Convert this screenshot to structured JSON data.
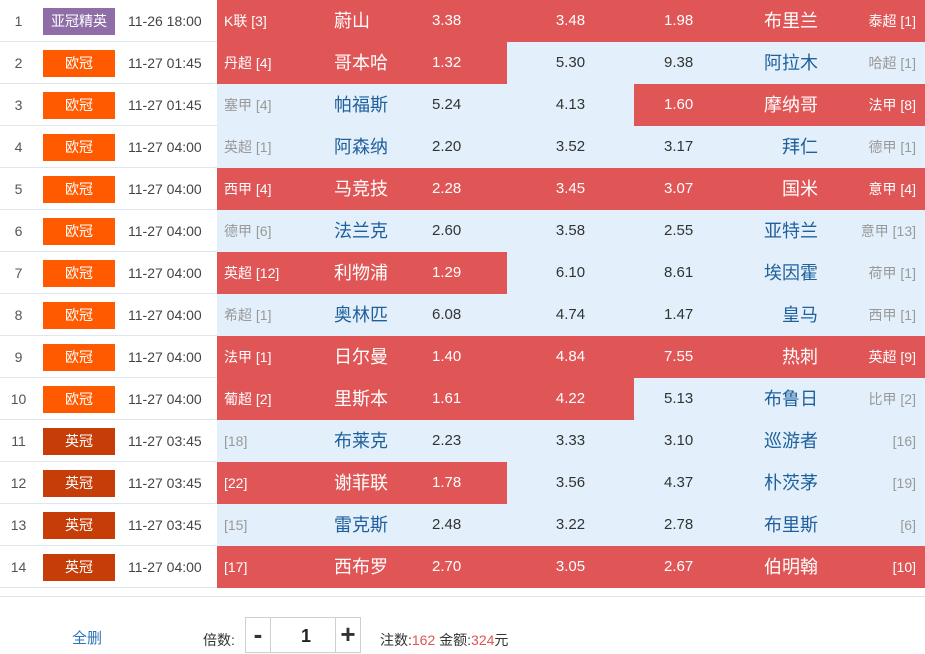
{
  "matches": [
    {
      "idx": "1",
      "league": "亚冠精英",
      "league_color": "purple",
      "time": "11-26 18:00",
      "home_rank": "K联 [3]",
      "home": "蔚山",
      "home_odd": "3.38",
      "draw_odd": "3.48",
      "away_odd": "1.98",
      "away": "布里兰",
      "away_rank": "泰超 [1]",
      "sel_home": true,
      "sel_draw": true,
      "sel_away": true
    },
    {
      "idx": "2",
      "league": "欧冠",
      "league_color": "orange",
      "time": "11-27 01:45",
      "home_rank": "丹超 [4]",
      "home": "哥本哈",
      "home_odd": "1.32",
      "draw_odd": "5.30",
      "away_odd": "9.38",
      "away": "阿拉木",
      "away_rank": "哈超 [1]",
      "sel_home": true,
      "sel_draw": false,
      "sel_away": false
    },
    {
      "idx": "3",
      "league": "欧冠",
      "league_color": "orange",
      "time": "11-27 01:45",
      "home_rank": "塞甲 [4]",
      "home": "帕福斯",
      "home_odd": "5.24",
      "draw_odd": "4.13",
      "away_odd": "1.60",
      "away": "摩纳哥",
      "away_rank": "法甲 [8]",
      "sel_home": false,
      "sel_draw": false,
      "sel_away": true
    },
    {
      "idx": "4",
      "league": "欧冠",
      "league_color": "orange",
      "time": "11-27 04:00",
      "home_rank": "英超 [1]",
      "home": "阿森纳",
      "home_odd": "2.20",
      "draw_odd": "3.52",
      "away_odd": "3.17",
      "away": "拜仁",
      "away_rank": "德甲 [1]",
      "sel_home": false,
      "sel_draw": false,
      "sel_away": false
    },
    {
      "idx": "5",
      "league": "欧冠",
      "league_color": "orange",
      "time": "11-27 04:00",
      "home_rank": "西甲 [4]",
      "home": "马竞技",
      "home_odd": "2.28",
      "draw_odd": "3.45",
      "away_odd": "3.07",
      "away": "国米",
      "away_rank": "意甲 [4]",
      "sel_home": true,
      "sel_draw": true,
      "sel_away": true
    },
    {
      "idx": "6",
      "league": "欧冠",
      "league_color": "orange",
      "time": "11-27 04:00",
      "home_rank": "德甲 [6]",
      "home": "法兰克",
      "home_odd": "2.60",
      "draw_odd": "3.58",
      "away_odd": "2.55",
      "away": "亚特兰",
      "away_rank": "意甲 [13]",
      "sel_home": false,
      "sel_draw": false,
      "sel_away": false
    },
    {
      "idx": "7",
      "league": "欧冠",
      "league_color": "orange",
      "time": "11-27 04:00",
      "home_rank": "英超 [12]",
      "home": "利物浦",
      "home_odd": "1.29",
      "draw_odd": "6.10",
      "away_odd": "8.61",
      "away": "埃因霍",
      "away_rank": "荷甲 [1]",
      "sel_home": true,
      "sel_draw": false,
      "sel_away": false
    },
    {
      "idx": "8",
      "league": "欧冠",
      "league_color": "orange",
      "time": "11-27 04:00",
      "home_rank": "希超 [1]",
      "home": "奥林匹",
      "home_odd": "6.08",
      "draw_odd": "4.74",
      "away_odd": "1.47",
      "away": "皇马",
      "away_rank": "西甲 [1]",
      "sel_home": false,
      "sel_draw": false,
      "sel_away": false
    },
    {
      "idx": "9",
      "league": "欧冠",
      "league_color": "orange",
      "time": "11-27 04:00",
      "home_rank": "法甲 [1]",
      "home": "日尔曼",
      "home_odd": "1.40",
      "draw_odd": "4.84",
      "away_odd": "7.55",
      "away": "热刺",
      "away_rank": "英超 [9]",
      "sel_home": true,
      "sel_draw": true,
      "sel_away": true
    },
    {
      "idx": "10",
      "league": "欧冠",
      "league_color": "orange",
      "time": "11-27 04:00",
      "home_rank": "葡超 [2]",
      "home": "里斯本",
      "home_odd": "1.61",
      "draw_odd": "4.22",
      "away_odd": "5.13",
      "away": "布鲁日",
      "away_rank": "比甲 [2]",
      "sel_home": true,
      "sel_draw": true,
      "sel_away": false
    },
    {
      "idx": "11",
      "league": "英冠",
      "league_color": "dark",
      "time": "11-27 03:45",
      "home_rank": "[18]",
      "home": "布莱克",
      "home_odd": "2.23",
      "draw_odd": "3.33",
      "away_odd": "3.10",
      "away": "巡游者",
      "away_rank": "[16]",
      "sel_home": false,
      "sel_draw": false,
      "sel_away": false
    },
    {
      "idx": "12",
      "league": "英冠",
      "league_color": "dark",
      "time": "11-27 03:45",
      "home_rank": "[22]",
      "home": "谢菲联",
      "home_odd": "1.78",
      "draw_odd": "3.56",
      "away_odd": "4.37",
      "away": "朴茨茅",
      "away_rank": "[19]",
      "sel_home": true,
      "sel_draw": false,
      "sel_away": false
    },
    {
      "idx": "13",
      "league": "英冠",
      "league_color": "dark",
      "time": "11-27 03:45",
      "home_rank": "[15]",
      "home": "雷克斯",
      "home_odd": "2.48",
      "draw_odd": "3.22",
      "away_odd": "2.78",
      "away": "布里斯",
      "away_rank": "[6]",
      "sel_home": false,
      "sel_draw": false,
      "sel_away": false
    },
    {
      "idx": "14",
      "league": "英冠",
      "league_color": "dark",
      "time": "11-27 04:00",
      "home_rank": "[17]",
      "home": "西布罗",
      "home_odd": "2.70",
      "draw_odd": "3.05",
      "away_odd": "2.67",
      "away": "伯明翰",
      "away_rank": "[10]",
      "sel_home": true,
      "sel_draw": true,
      "sel_away": true
    }
  ],
  "footer": {
    "clear_all": "全删",
    "multiplier_label": "倍数:",
    "minus": "-",
    "plus": "+",
    "multiplier_value": "1",
    "bets_label": "注数:",
    "bets_value": "162",
    "amount_label": "金额:",
    "amount_value": "324",
    "amount_unit": "元"
  },
  "colors": {
    "selected": "#e05555",
    "unselected": "#e3f0fb",
    "purple": "#8f6ea8",
    "orange": "#ff5a00",
    "dark": "#c63d08"
  }
}
